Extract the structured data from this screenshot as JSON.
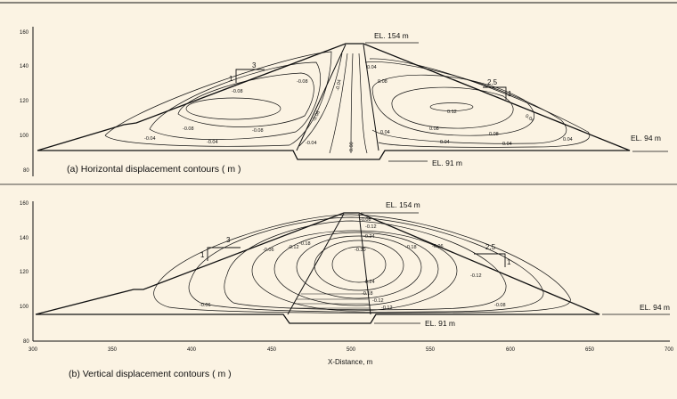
{
  "panel_a": {
    "caption": "(a) Horizontal displacement contours ( m )",
    "y_ticks": [
      "160",
      "140",
      "120",
      "100",
      "80"
    ],
    "elevation_labels": {
      "crest": "EL. 154 m",
      "downstream": "EL. 94 m",
      "foundation": "EL. 91 m"
    },
    "slopes": {
      "upstream": {
        "horizontal": "3",
        "vertical": "1"
      },
      "downstream": {
        "horizontal": "2.5",
        "vertical": "1"
      }
    },
    "contour_labels": [
      "-0.08",
      "-0.08",
      "-0.08",
      "-0.08",
      "-0.04",
      "-0.04",
      "-0.04",
      "-0.06",
      "-0.04",
      "0.00",
      "0.04",
      "0.08",
      "0.12",
      "0.04",
      "0.08",
      "0.04",
      "0.08",
      "0.04",
      "0.04",
      "0.04"
    ]
  },
  "panel_b": {
    "caption": "(b) Vertical displacement contours ( m )",
    "y_ticks": [
      "160",
      "140",
      "120",
      "100",
      "80"
    ],
    "x_ticks": [
      "300",
      "350",
      "400",
      "450",
      "500",
      "550",
      "600",
      "650",
      "700"
    ],
    "xlabel": "X-Distance, m",
    "elevation_labels": {
      "crest": "EL. 154 m",
      "downstream": "EL. 94 m",
      "foundation": "EL. 91 m"
    },
    "slopes": {
      "upstream": {
        "horizontal": "3",
        "vertical": "1"
      },
      "downstream": {
        "horizontal": "2.5",
        "vertical": "1"
      }
    },
    "contour_labels": [
      "-0.06",
      "-0.12",
      "-0.18",
      "-0.08",
      "-0.12",
      "-0.24",
      "-0.06",
      "-0.12",
      "-0.18",
      "-0.30",
      "-0.24",
      "-0.18",
      "-0.12",
      "-0.06",
      "-0.12",
      "-0.08"
    ]
  },
  "colors": {
    "background": "#fbf3e3",
    "line": "#111111"
  }
}
